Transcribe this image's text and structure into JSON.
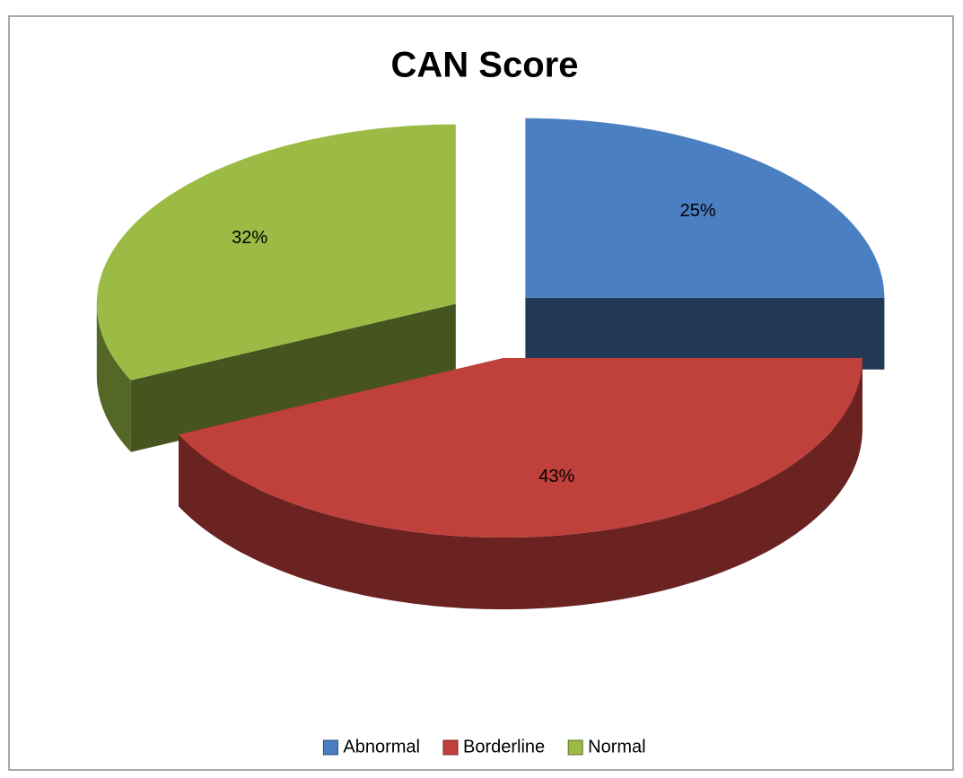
{
  "chart_data": {
    "type": "pie",
    "title": "CAN Score",
    "categories": [
      "Abnormal",
      "Borderline",
      "Normal"
    ],
    "values": [
      25,
      43,
      32
    ],
    "value_labels": [
      "25%",
      "43%",
      "32%"
    ],
    "colors": [
      "#4a7fc1",
      "#c0403b",
      "#9bbb45"
    ],
    "legend": "bottom"
  }
}
